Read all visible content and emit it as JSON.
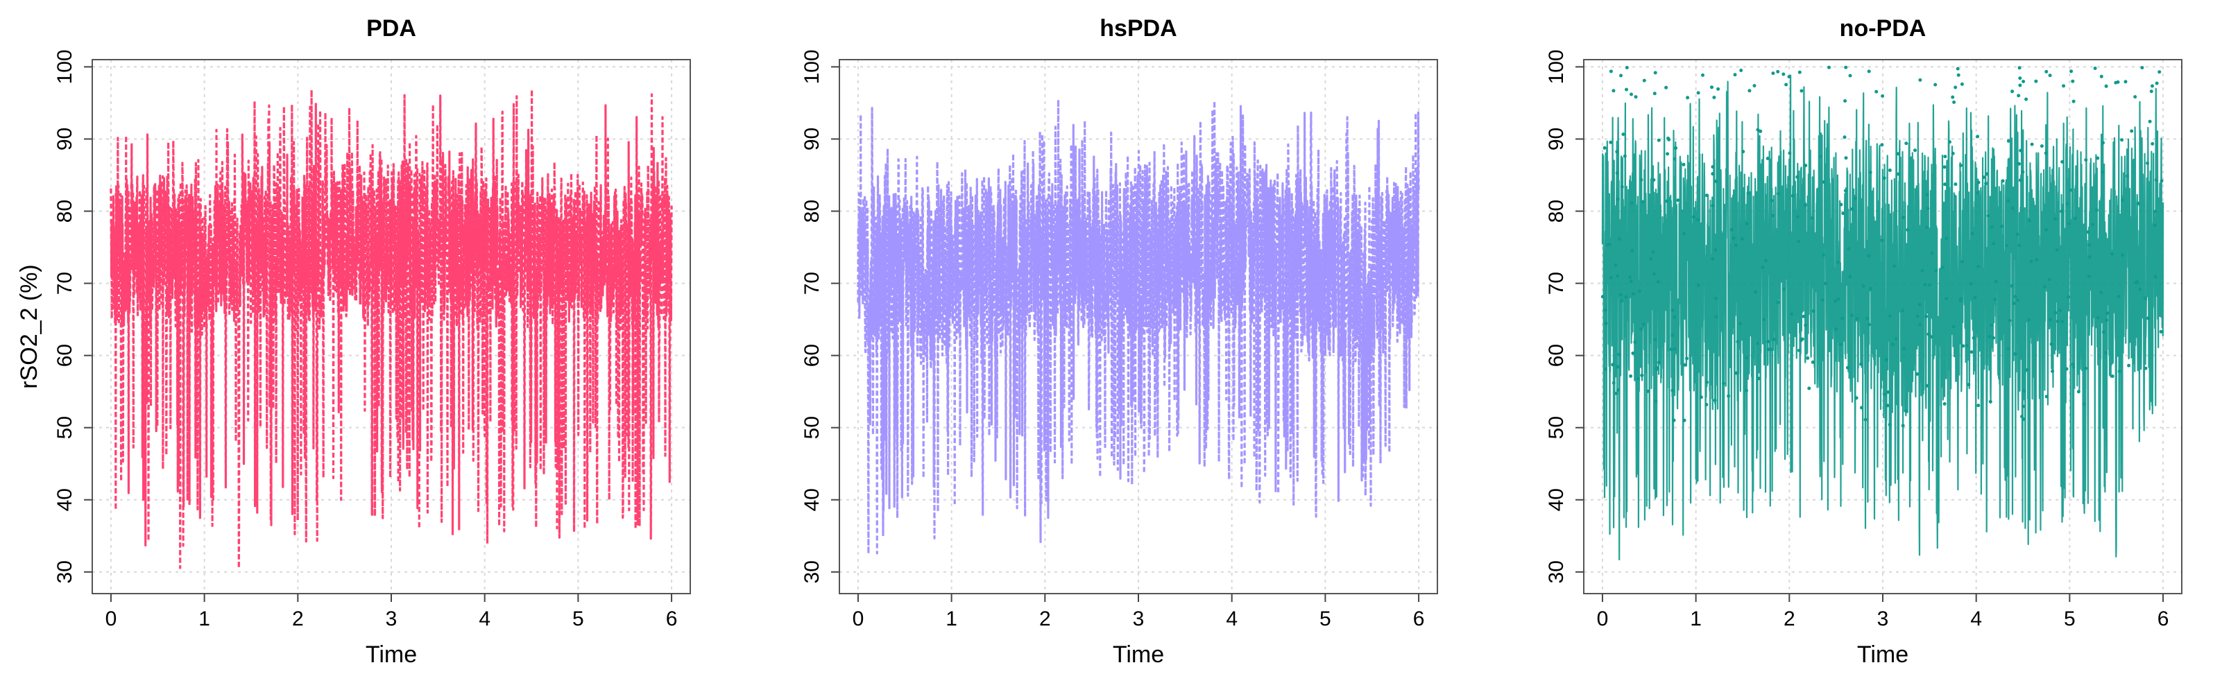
{
  "chart_data": [
    {
      "type": "line",
      "title": "PDA",
      "xlabel": "Time",
      "ylabel": "rSO2_2 (%)",
      "xlim": [
        -0.2,
        6.2
      ],
      "ylim": [
        27,
        101
      ],
      "xticks": [
        0,
        1,
        2,
        3,
        4,
        5,
        6
      ],
      "yticks": [
        30,
        40,
        50,
        60,
        70,
        80,
        90,
        100
      ],
      "grid": true,
      "color": "#ff3366",
      "line_style": "dashed",
      "series": [
        {
          "values_description_free": true,
          "x": [
            0.0,
            0.5,
            1.0,
            1.5,
            2.0,
            2.5,
            3.0,
            3.5,
            4.0,
            4.5,
            5.0,
            5.5,
            6.0
          ],
          "center": [
            75,
            74,
            73,
            74,
            75,
            74,
            76,
            74,
            75,
            73,
            75,
            74,
            74
          ],
          "band_low": [
            62,
            63,
            62,
            63,
            62,
            64,
            63,
            64,
            63,
            62,
            63,
            62,
            63
          ],
          "band_high": [
            85,
            86,
            85,
            87,
            86,
            88,
            89,
            88,
            87,
            86,
            86,
            85,
            86
          ],
          "min": [
            27,
            27,
            27,
            27,
            27,
            27,
            28,
            27,
            28,
            27,
            27,
            27,
            27
          ],
          "max": [
            99,
            94,
            96,
            99,
            100,
            100,
            100,
            100,
            100,
            100,
            100,
            98,
            100
          ]
        }
      ]
    },
    {
      "type": "line",
      "title": "hsPDA",
      "xlabel": "Time",
      "ylabel": "",
      "xlim": [
        -0.2,
        6.2
      ],
      "ylim": [
        27,
        101
      ],
      "xticks": [
        0,
        1,
        2,
        3,
        4,
        5,
        6
      ],
      "yticks": [
        30,
        40,
        50,
        60,
        70,
        80,
        90,
        100
      ],
      "grid": true,
      "color": "#9b8cff",
      "line_style": "dashed",
      "series": [
        {
          "x": [
            0.0,
            0.5,
            1.0,
            1.5,
            2.0,
            2.5,
            3.0,
            3.5,
            4.0,
            4.5,
            5.0,
            5.5,
            6.0
          ],
          "center": [
            73,
            72,
            71,
            72,
            74,
            73,
            71,
            70,
            73,
            72,
            71,
            72,
            75
          ],
          "band_low": [
            60,
            58,
            57,
            58,
            62,
            60,
            58,
            60,
            62,
            60,
            57,
            58,
            60
          ],
          "band_high": [
            84,
            85,
            84,
            86,
            86,
            86,
            88,
            88,
            90,
            88,
            86,
            85,
            88
          ],
          "min": [
            29,
            30,
            33,
            35,
            30,
            37,
            37,
            40,
            38,
            35,
            28,
            34,
            54
          ],
          "max": [
            100,
            90,
            88,
            87,
            100,
            100,
            92,
            93,
            100,
            100,
            99,
            96,
            100
          ]
        }
      ]
    },
    {
      "type": "line",
      "title": "no-PDA",
      "xlabel": "Time",
      "ylabel": "",
      "xlim": [
        -0.2,
        6.2
      ],
      "ylim": [
        27,
        101
      ],
      "xticks": [
        0,
        1,
        2,
        3,
        4,
        5,
        6
      ],
      "yticks": [
        30,
        40,
        50,
        60,
        70,
        80,
        90,
        100
      ],
      "grid": true,
      "color": "#0f9a8c",
      "line_style": "solid",
      "series": [
        {
          "x": [
            0.0,
            0.5,
            1.0,
            1.5,
            2.0,
            2.5,
            3.0,
            3.5,
            4.0,
            4.5,
            5.0,
            5.5,
            6.0
          ],
          "center": [
            76,
            75,
            74,
            75,
            76,
            75,
            74,
            75,
            76,
            75,
            74,
            76,
            76
          ],
          "band_low": [
            55,
            52,
            50,
            52,
            55,
            52,
            50,
            50,
            52,
            50,
            52,
            55,
            58
          ],
          "band_high": [
            92,
            91,
            90,
            91,
            92,
            91,
            90,
            92,
            92,
            91,
            90,
            91,
            93
          ],
          "min": [
            29,
            29,
            29,
            30,
            30,
            30,
            29,
            29,
            30,
            29,
            29,
            29,
            50
          ],
          "max": [
            100,
            100,
            100,
            100,
            100,
            100,
            100,
            100,
            100,
            100,
            100,
            100,
            100
          ]
        }
      ]
    }
  ]
}
